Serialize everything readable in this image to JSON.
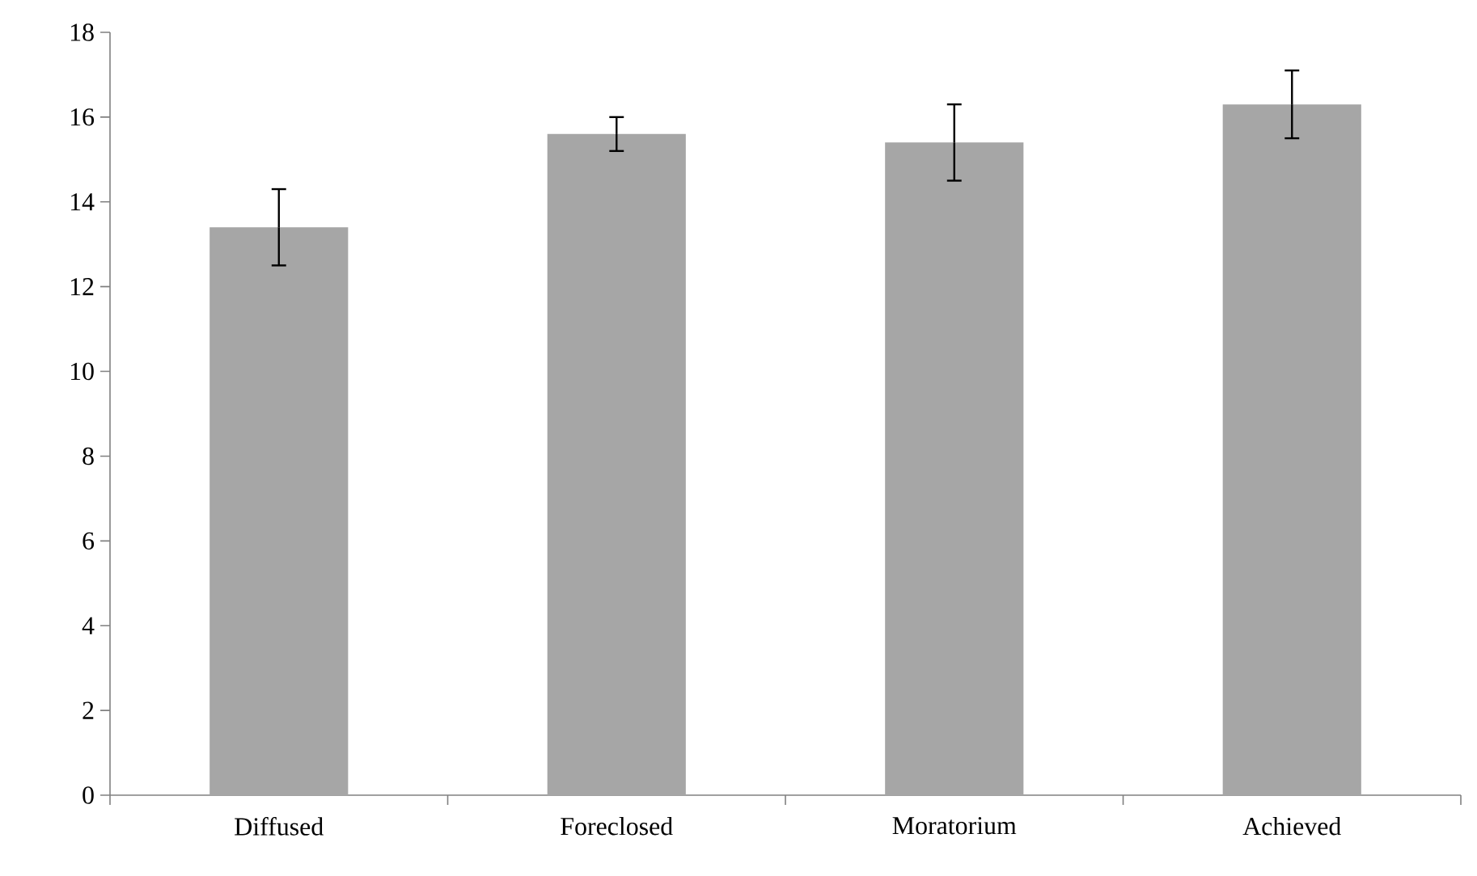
{
  "chart_data": {
    "type": "bar",
    "categories": [
      "Diffused",
      "Foreclosed",
      "Moratorium",
      "Achieved"
    ],
    "values": [
      13.4,
      15.6,
      15.4,
      16.3
    ],
    "errors": [
      0.9,
      0.4,
      0.9,
      0.8
    ],
    "color": "#a6a6a6",
    "ylim": [
      0,
      18
    ],
    "yticks": [
      0,
      2,
      4,
      6,
      8,
      10,
      12,
      14,
      16,
      18
    ]
  }
}
